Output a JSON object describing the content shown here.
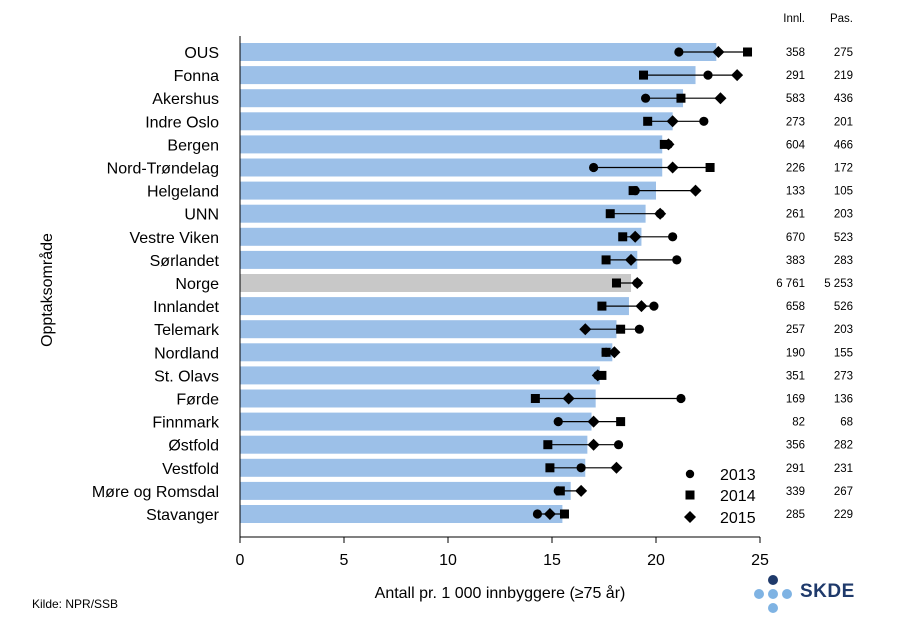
{
  "chart_data": {
    "type": "bar",
    "title": "",
    "xlabel": "Antall pr. 1 000 innbyggere (≥75 år)",
    "ylabel": "Opptaksområde",
    "xlim": [
      0,
      25
    ],
    "xticks": [
      0,
      5,
      10,
      15,
      20,
      25
    ],
    "grid": false,
    "legend_placement": "bottom-right",
    "bar_color": "#9cc0e8",
    "highlight_color": "#c8c8c8",
    "col_headers": [
      "Innl.",
      "Pas."
    ],
    "legend": [
      {
        "label": "2013",
        "marker": "circle"
      },
      {
        "label": "2014",
        "marker": "square"
      },
      {
        "label": "2015",
        "marker": "diamond"
      }
    ],
    "categories": [
      "OUS",
      "Fonna",
      "Akershus",
      "Indre Oslo",
      "Bergen",
      "Nord-Trøndelag",
      "Helgeland",
      "UNN",
      "Vestre Viken",
      "Sørlandet",
      "Norge",
      "Innlandet",
      "Telemark",
      "Nordland",
      "St. Olavs",
      "Førde",
      "Finnmark",
      "Østfold",
      "Vestfold",
      "Møre og Romsdal",
      "Stavanger"
    ],
    "highlight": "Norge",
    "values": [
      22.9,
      21.9,
      21.3,
      20.8,
      20.3,
      20.3,
      20.0,
      19.5,
      19.3,
      19.1,
      18.8,
      18.7,
      18.1,
      17.9,
      17.3,
      17.1,
      16.9,
      16.7,
      16.6,
      15.9,
      15.5
    ],
    "y2013": [
      21.1,
      22.5,
      19.5,
      22.3,
      20.6,
      17.0,
      19.0,
      20.2,
      20.8,
      21.0,
      19.1,
      19.9,
      19.2,
      17.6,
      17.2,
      21.2,
      15.3,
      18.2,
      16.4,
      15.3,
      14.3
    ],
    "y2014": [
      24.4,
      19.4,
      21.2,
      19.6,
      20.4,
      22.6,
      18.9,
      17.8,
      18.4,
      17.6,
      18.1,
      17.4,
      18.3,
      17.6,
      17.4,
      14.2,
      18.3,
      14.8,
      14.9,
      15.4,
      15.6
    ],
    "y2015": [
      23.0,
      23.9,
      23.1,
      20.8,
      20.6,
      20.8,
      21.9,
      20.2,
      19.0,
      18.8,
      19.1,
      19.3,
      16.6,
      18.0,
      17.2,
      15.8,
      17.0,
      17.0,
      18.1,
      16.4,
      14.9
    ],
    "innl": [
      "358",
      "291",
      "583",
      "273",
      "604",
      "226",
      "133",
      "261",
      "670",
      "383",
      "6 761",
      "658",
      "257",
      "190",
      "351",
      "169",
      "82",
      "356",
      "291",
      "339",
      "285"
    ],
    "pas": [
      "275",
      "219",
      "436",
      "201",
      "466",
      "172",
      "105",
      "203",
      "523",
      "283",
      "5 253",
      "526",
      "203",
      "155",
      "273",
      "136",
      "68",
      "282",
      "231",
      "267",
      "229"
    ]
  },
  "source": "Kilde: NPR/SSB",
  "logo": {
    "text": "SKDE",
    "dark_color": "#1f3a6b",
    "light_color": "#7fb3e3"
  }
}
